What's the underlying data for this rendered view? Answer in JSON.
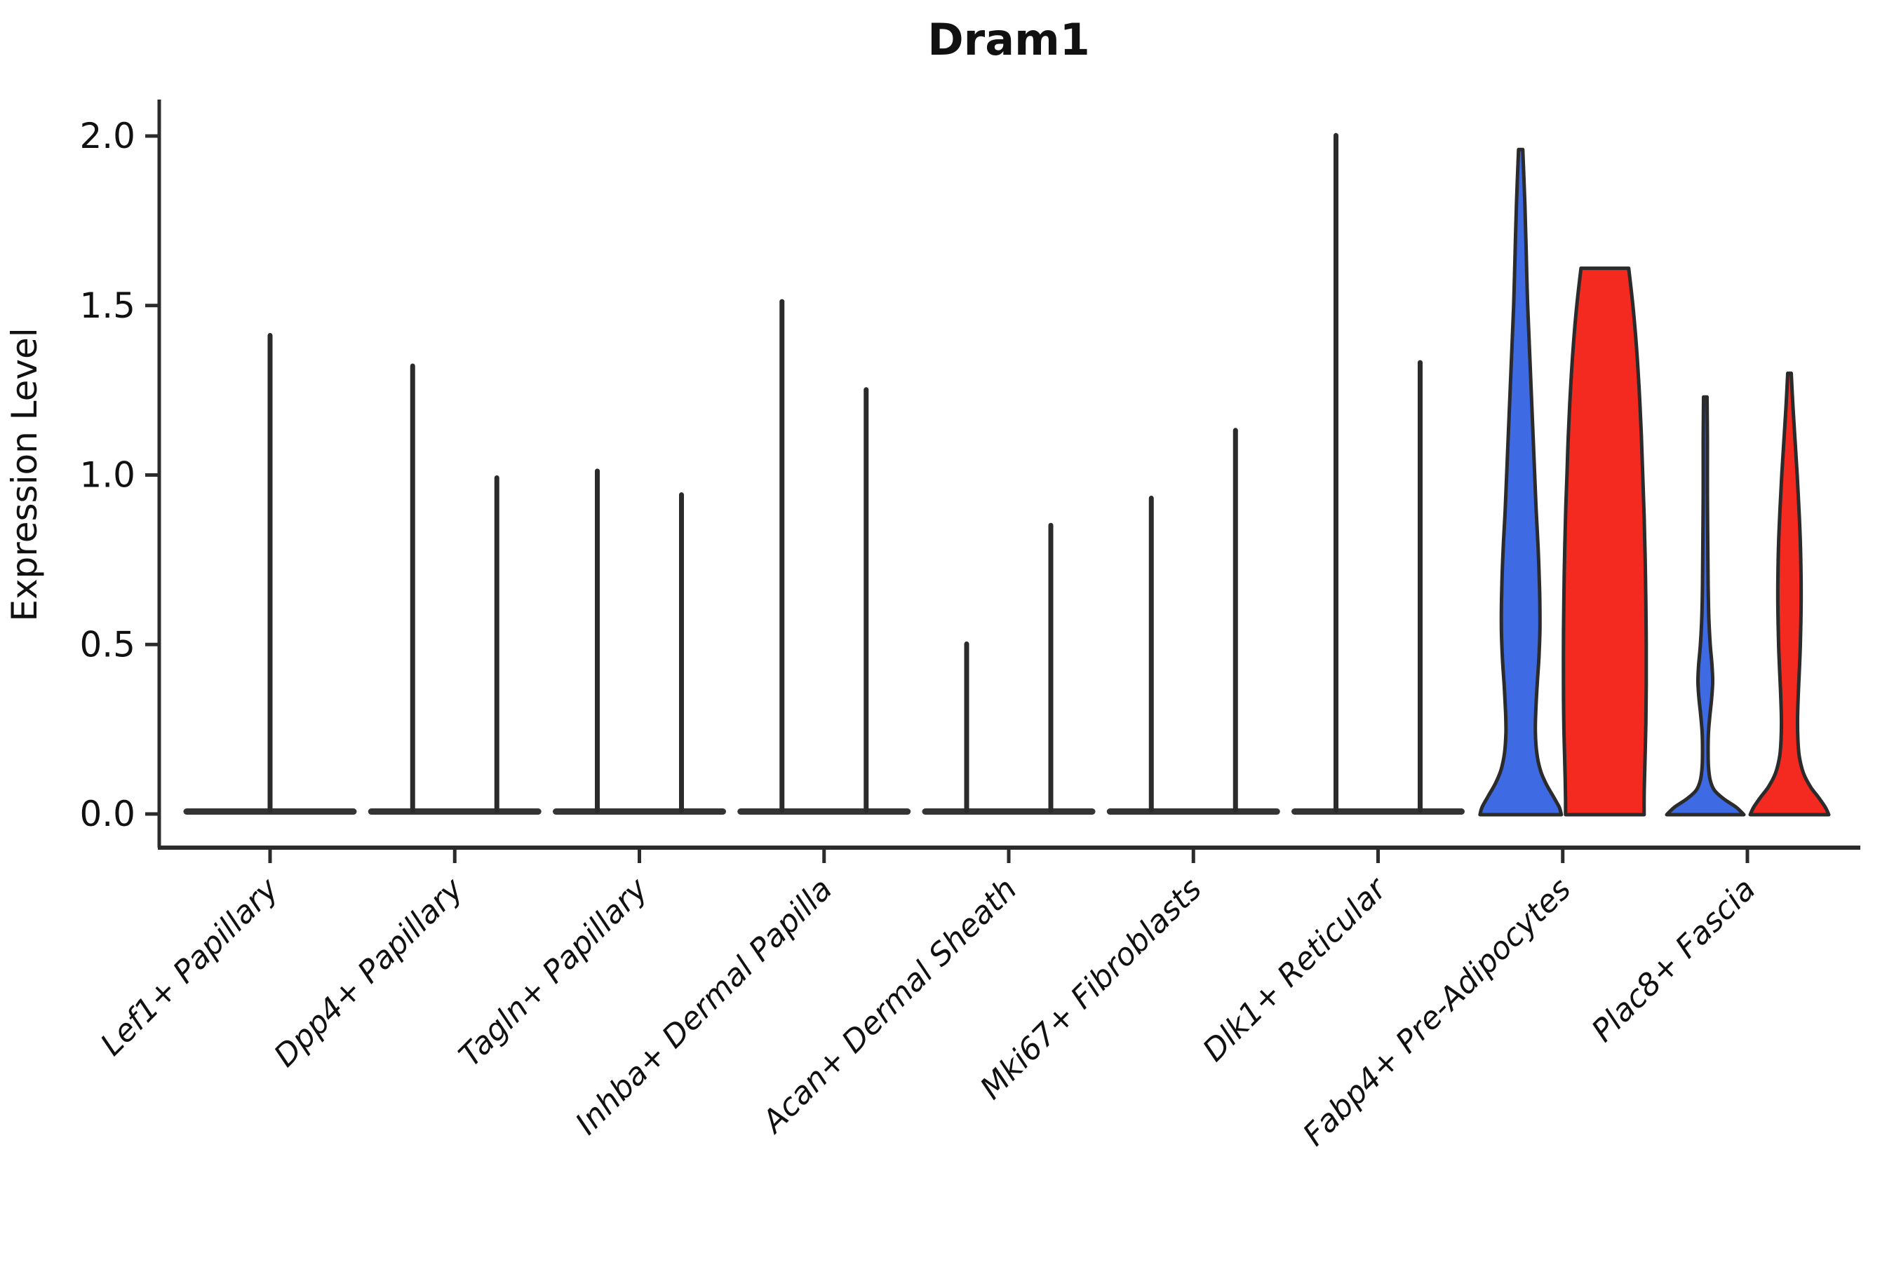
{
  "title": "Dram1",
  "ylabel": "Expression Level",
  "chart_data": {
    "type": "violin",
    "title": "Dram1",
    "xlabel": "",
    "ylabel": "Expression Level",
    "ylim": [
      -0.1,
      2.11
    ],
    "yticks": [
      0.0,
      0.5,
      1.0,
      1.5,
      2.0
    ],
    "ytick_labels": [
      "0.0",
      "0.5",
      "1.0",
      "1.5",
      "2.0"
    ],
    "grid": false,
    "legend": "none",
    "colors": {
      "blue": "#3E6AE3",
      "red": "#F42A20",
      "ink": "#2B2B2B",
      "text": "#111111"
    },
    "categories": [
      "Lef1+ Papillary",
      "Dpp4+ Papillary",
      "Tagln+ Papillary",
      "Inhba+ Dermal Papilla",
      "Acan+ Dermal Sheath",
      "Mki67+ Fibroblasts",
      "Dlk1+ Reticular",
      "Fabp4+ Pre-Adipocytes",
      "Plac8+ Fascia"
    ],
    "groups": [
      {
        "category": "Lef1+ Papillary",
        "violins": [
          {
            "offset": 0,
            "color": "ink",
            "style": "collapsed",
            "max": 1.42
          }
        ]
      },
      {
        "category": "Dpp4+ Papillary",
        "violins": [
          {
            "offset": -1,
            "color": "ink",
            "style": "collapsed",
            "max": 1.33
          },
          {
            "offset": 1,
            "color": "ink",
            "style": "collapsed",
            "max": 1.0
          }
        ]
      },
      {
        "category": "Tagln+ Papillary",
        "violins": [
          {
            "offset": -1,
            "color": "ink",
            "style": "collapsed",
            "max": 1.02
          },
          {
            "offset": 1,
            "color": "ink",
            "style": "collapsed",
            "max": 0.95
          }
        ]
      },
      {
        "category": "Inhba+ Dermal Papilla",
        "violins": [
          {
            "offset": -1,
            "color": "ink",
            "style": "collapsed",
            "max": 1.52
          },
          {
            "offset": 1,
            "color": "ink",
            "style": "collapsed",
            "max": 1.26
          }
        ]
      },
      {
        "category": "Acan+ Dermal Sheath",
        "violins": [
          {
            "offset": -1,
            "color": "ink",
            "style": "collapsed",
            "max": 0.51
          },
          {
            "offset": 1,
            "color": "ink",
            "style": "collapsed",
            "max": 0.86
          }
        ]
      },
      {
        "category": "Mki67+ Fibroblasts",
        "violins": [
          {
            "offset": -1,
            "color": "ink",
            "style": "collapsed",
            "max": 0.94
          },
          {
            "offset": 1,
            "color": "ink",
            "style": "collapsed",
            "max": 1.14
          }
        ]
      },
      {
        "category": "Dlk1+ Reticular",
        "violins": [
          {
            "offset": -1,
            "color": "ink",
            "style": "collapsed",
            "max": 2.01
          },
          {
            "offset": 1,
            "color": "ink",
            "style": "collapsed",
            "max": 1.34
          }
        ]
      },
      {
        "category": "Fabp4+ Pre-Adipocytes",
        "violins": [
          {
            "offset": -1,
            "color": "blue",
            "style": "kde",
            "max": 1.96,
            "profile": [
              [
                1.96,
                3
              ],
              [
                1.8,
                6
              ],
              [
                1.65,
                8
              ],
              [
                1.5,
                10
              ],
              [
                1.35,
                13
              ],
              [
                1.2,
                16
              ],
              [
                1.05,
                19
              ],
              [
                0.9,
                22
              ],
              [
                0.78,
                25
              ],
              [
                0.66,
                27
              ],
              [
                0.55,
                27.5
              ],
              [
                0.46,
                26
              ],
              [
                0.38,
                23.5
              ],
              [
                0.3,
                21.5
              ],
              [
                0.24,
                21
              ],
              [
                0.18,
                23
              ],
              [
                0.13,
                28
              ],
              [
                0.09,
                36
              ],
              [
                0.05,
                47
              ],
              [
                0.02,
                55
              ],
              [
                0,
                58
              ]
            ]
          },
          {
            "offset": 1,
            "color": "red",
            "style": "kde",
            "max": 1.61,
            "profile": [
              [
                1.61,
                34
              ],
              [
                1.5,
                40
              ],
              [
                1.38,
                45
              ],
              [
                1.25,
                49
              ],
              [
                1.12,
                52
              ],
              [
                1.0,
                54
              ],
              [
                0.88,
                56
              ],
              [
                0.75,
                57.5
              ],
              [
                0.62,
                58.5
              ],
              [
                0.5,
                59
              ],
              [
                0.38,
                59
              ],
              [
                0.27,
                58.5
              ],
              [
                0.18,
                57.5
              ],
              [
                0.1,
                56.5
              ],
              [
                0.04,
                56
              ],
              [
                0,
                56
              ]
            ]
          }
        ]
      },
      {
        "category": "Plac8+ Fascia",
        "violins": [
          {
            "offset": -1,
            "color": "blue",
            "style": "kde",
            "max": 1.23,
            "profile": [
              [
                1.23,
                2.5
              ],
              [
                1.1,
                3
              ],
              [
                0.95,
                3
              ],
              [
                0.8,
                3.5
              ],
              [
                0.68,
                4
              ],
              [
                0.58,
                5
              ],
              [
                0.5,
                7
              ],
              [
                0.44,
                9.5
              ],
              [
                0.39,
                10.5
              ],
              [
                0.34,
                9
              ],
              [
                0.29,
                6.5
              ],
              [
                0.24,
                4.5
              ],
              [
                0.19,
                4
              ],
              [
                0.14,
                4.5
              ],
              [
                0.1,
                7
              ],
              [
                0.07,
                13
              ],
              [
                0.045,
                26
              ],
              [
                0.02,
                44
              ],
              [
                0,
                55
              ]
            ]
          },
          {
            "offset": 1,
            "color": "red",
            "style": "kde",
            "max": 1.3,
            "profile": [
              [
                1.3,
                2.5
              ],
              [
                1.2,
                5
              ],
              [
                1.1,
                8
              ],
              [
                1.0,
                11
              ],
              [
                0.9,
                13.5
              ],
              [
                0.8,
                15.5
              ],
              [
                0.7,
                16.5
              ],
              [
                0.6,
                16.5
              ],
              [
                0.5,
                15.5
              ],
              [
                0.42,
                14
              ],
              [
                0.35,
                12.5
              ],
              [
                0.28,
                11.5
              ],
              [
                0.22,
                12
              ],
              [
                0.17,
                14
              ],
              [
                0.12,
                20
              ],
              [
                0.08,
                30
              ],
              [
                0.05,
                41
              ],
              [
                0.02,
                51
              ],
              [
                0,
                56
              ]
            ]
          }
        ]
      }
    ]
  }
}
